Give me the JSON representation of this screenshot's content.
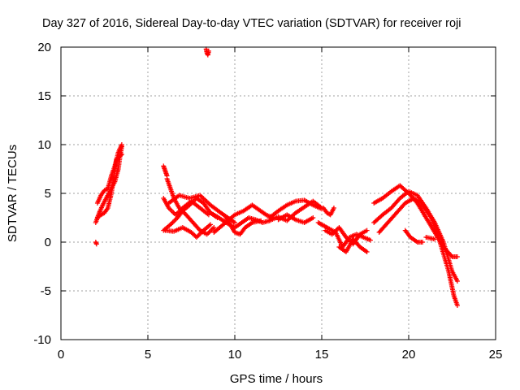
{
  "chart_data": {
    "type": "scatter",
    "title": "Day 327 of 2016, Sidereal Day-to-day VTEC variation (SDTVAR) for receiver roji",
    "xlabel": "GPS time / hours",
    "ylabel": "SDTVAR / TECUs",
    "xlim": [
      0,
      25
    ],
    "ylim": [
      -10,
      20
    ],
    "xticks": [
      0,
      5,
      10,
      15,
      20,
      25
    ],
    "yticks": [
      -10,
      -5,
      0,
      5,
      10,
      15,
      20
    ],
    "xtick_labels": [
      "0",
      "5",
      "10",
      "15",
      "20",
      "25"
    ],
    "ytick_labels": [
      "-10",
      "-5",
      "0",
      "5",
      "10",
      "15",
      "20"
    ],
    "grid": true,
    "marker": "+",
    "marker_color": "#ff0000",
    "grid_color": "#a0a0a0",
    "series": [
      {
        "name": "SDTVAR",
        "tracks": [
          [
            [
              2.0,
              2.0
            ],
            [
              2.2,
              3.0
            ],
            [
              2.4,
              3.8
            ],
            [
              2.6,
              4.5
            ],
            [
              2.9,
              5.5
            ],
            [
              3.1,
              6.2
            ],
            [
              3.3,
              7.5
            ],
            [
              3.4,
              8.8
            ],
            [
              3.5,
              9.8
            ]
          ],
          [
            [
              2.1,
              4.0
            ],
            [
              2.3,
              4.8
            ],
            [
              2.5,
              5.3
            ],
            [
              2.7,
              5.5
            ],
            [
              2.9,
              6.8
            ],
            [
              3.1,
              7.8
            ],
            [
              3.3,
              9.2
            ],
            [
              3.5,
              10.0
            ]
          ],
          [
            [
              2.1,
              2.5
            ],
            [
              2.3,
              2.8
            ],
            [
              2.5,
              3.0
            ],
            [
              2.7,
              3.5
            ],
            [
              2.9,
              5.0
            ],
            [
              3.2,
              8.5
            ],
            [
              3.5,
              9.0
            ]
          ],
          [
            [
              2.0,
              0.0
            ],
            [
              2.05,
              -0.2
            ]
          ],
          [
            [
              8.35,
              19.8
            ],
            [
              8.4,
              19.4
            ],
            [
              8.45,
              19.2
            ],
            [
              8.5,
              19.6
            ]
          ],
          [
            [
              5.9,
              7.8
            ],
            [
              6.0,
              7.3
            ],
            [
              6.1,
              6.8
            ]
          ],
          [
            [
              5.9,
              4.5
            ],
            [
              6.2,
              3.5
            ],
            [
              6.6,
              2.8
            ],
            [
              7.0,
              3.5
            ],
            [
              7.5,
              4.2
            ],
            [
              8.0,
              3.5
            ],
            [
              8.5,
              2.8
            ]
          ],
          [
            [
              5.9,
              1.2
            ],
            [
              6.3,
              1.8
            ],
            [
              6.7,
              2.5
            ],
            [
              7.0,
              3.2
            ],
            [
              7.4,
              3.8
            ],
            [
              7.8,
              4.5
            ],
            [
              8.2,
              4.0
            ],
            [
              8.6,
              3.0
            ],
            [
              9.0,
              2.5
            ]
          ],
          [
            [
              6.1,
              6.5
            ],
            [
              6.3,
              5.5
            ],
            [
              6.5,
              4.5
            ],
            [
              6.8,
              3.5
            ],
            [
              7.2,
              2.8
            ],
            [
              7.6,
              2.0
            ],
            [
              8.0,
              1.2
            ],
            [
              8.4,
              0.8
            ],
            [
              8.8,
              1.5
            ]
          ],
          [
            [
              6.0,
              1.2
            ],
            [
              6.5,
              1.1
            ],
            [
              7.0,
              1.5
            ],
            [
              7.5,
              1.0
            ],
            [
              7.8,
              0.5
            ],
            [
              8.2,
              1.2
            ],
            [
              8.6,
              1.8
            ]
          ],
          [
            [
              6.2,
              4.0
            ],
            [
              6.8,
              4.8
            ],
            [
              7.4,
              4.5
            ],
            [
              8.0,
              4.8
            ],
            [
              8.6,
              3.8
            ],
            [
              9.2,
              3.0
            ],
            [
              9.6,
              2.5
            ],
            [
              10.0,
              2.0
            ]
          ],
          [
            [
              8.6,
              3.0
            ],
            [
              9.0,
              2.6
            ],
            [
              9.5,
              2.0
            ],
            [
              10.0,
              1.5
            ],
            [
              10.4,
              2.0
            ],
            [
              10.8,
              2.5
            ],
            [
              11.2,
              2.3
            ],
            [
              11.6,
              2.0
            ],
            [
              12.0,
              2.2
            ]
          ],
          [
            [
              8.8,
              1.0
            ],
            [
              9.2,
              1.6
            ],
            [
              9.6,
              2.2
            ],
            [
              10.0,
              2.8
            ],
            [
              10.5,
              3.2
            ],
            [
              11.0,
              3.8
            ],
            [
              11.4,
              3.3
            ],
            [
              11.8,
              2.8
            ],
            [
              12.2,
              2.5
            ]
          ],
          [
            [
              9.5,
              2.5
            ],
            [
              10.0,
              1.0
            ],
            [
              10.3,
              0.8
            ],
            [
              10.6,
              1.5
            ],
            [
              11.0,
              2.0
            ],
            [
              11.5,
              2.2
            ]
          ],
          [
            [
              12.0,
              2.2
            ],
            [
              12.5,
              2.6
            ],
            [
              13.0,
              2.2
            ],
            [
              13.5,
              3.0
            ],
            [
              14.0,
              3.6
            ],
            [
              14.5,
              4.2
            ],
            [
              15.0,
              3.5
            ]
          ],
          [
            [
              12.0,
              2.5
            ],
            [
              12.5,
              3.2
            ],
            [
              13.0,
              3.8
            ],
            [
              13.5,
              4.2
            ],
            [
              14.0,
              4.3
            ],
            [
              14.5,
              3.8
            ],
            [
              15.0,
              3.4
            ]
          ],
          [
            [
              12.5,
              2.3
            ],
            [
              13.0,
              2.8
            ],
            [
              13.5,
              2.3
            ],
            [
              14.0,
              2.0
            ],
            [
              14.5,
              2.5
            ]
          ],
          [
            [
              15.1,
              3.5
            ],
            [
              15.3,
              3.0
            ],
            [
              15.5,
              2.8
            ],
            [
              15.7,
              3.5
            ]
          ],
          [
            [
              14.8,
              2.0
            ],
            [
              15.3,
              1.5
            ],
            [
              15.8,
              1.0
            ],
            [
              16.2,
              -0.5
            ],
            [
              16.6,
              0.5
            ],
            [
              17.0,
              0.8
            ],
            [
              17.4,
              0.5
            ],
            [
              17.8,
              0.2
            ]
          ],
          [
            [
              15.2,
              1.2
            ],
            [
              15.6,
              0.8
            ],
            [
              16.0,
              1.5
            ],
            [
              16.4,
              0.5
            ],
            [
              16.8,
              -0.2
            ],
            [
              17.2,
              0.8
            ],
            [
              17.6,
              1.2
            ]
          ],
          [
            [
              16.0,
              -0.5
            ],
            [
              16.4,
              -1.0
            ],
            [
              16.8,
              0.3
            ],
            [
              17.2,
              -0.5
            ],
            [
              17.6,
              -1.0
            ]
          ],
          [
            [
              18.0,
              4.0
            ],
            [
              18.5,
              4.5
            ],
            [
              19.0,
              5.2
            ],
            [
              19.5,
              5.8
            ],
            [
              20.0,
              5.0
            ],
            [
              20.5,
              4.0
            ],
            [
              21.0,
              2.5
            ],
            [
              21.5,
              1.0
            ],
            [
              22.0,
              -0.5
            ],
            [
              22.5,
              -1.5
            ],
            [
              22.8,
              -1.5
            ]
          ],
          [
            [
              18.0,
              2.0
            ],
            [
              18.5,
              2.8
            ],
            [
              19.0,
              3.5
            ],
            [
              19.5,
              4.5
            ],
            [
              20.0,
              5.2
            ],
            [
              20.5,
              4.8
            ],
            [
              21.0,
              3.5
            ],
            [
              21.5,
              2.0
            ],
            [
              22.0,
              0.0
            ],
            [
              22.5,
              -3.0
            ],
            [
              22.8,
              -4.0
            ]
          ],
          [
            [
              18.3,
              1.0
            ],
            [
              18.8,
              2.0
            ],
            [
              19.3,
              3.0
            ],
            [
              19.8,
              4.0
            ],
            [
              20.3,
              4.5
            ],
            [
              20.8,
              3.8
            ],
            [
              21.3,
              2.5
            ],
            [
              21.8,
              0.0
            ],
            [
              22.3,
              -3.0
            ],
            [
              22.6,
              -5.5
            ],
            [
              22.8,
              -6.5
            ]
          ],
          [
            [
              19.8,
              1.2
            ],
            [
              20.1,
              0.5
            ],
            [
              20.5,
              0.0
            ],
            [
              20.8,
              0.0
            ]
          ],
          [
            [
              21.0,
              0.5
            ],
            [
              21.5,
              0.3
            ]
          ]
        ]
      }
    ]
  }
}
